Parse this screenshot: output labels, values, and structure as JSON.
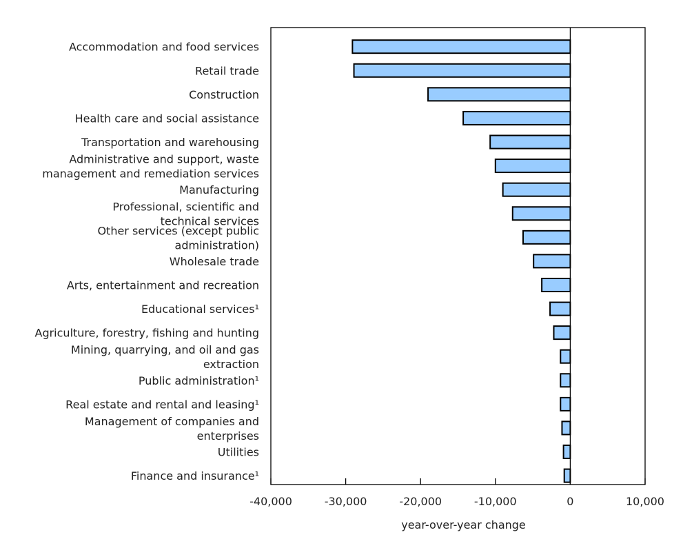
{
  "chart_data": {
    "type": "bar",
    "orientation": "horizontal",
    "categories": [
      "Accommodation and food services",
      "Retail trade",
      "Construction",
      "Health care and social assistance",
      "Transportation and warehousing",
      "Administrative and support, waste management and remediation services",
      "Manufacturing",
      "Professional, scientific and technical services",
      "Other services (except public administration)",
      "Wholesale trade",
      "Arts, entertainment and recreation",
      "Educational services¹",
      "Agriculture, forestry, fishing and hunting",
      "Mining, quarrying, and oil and gas extraction",
      "Public administration¹",
      "Real estate and rental and leasing¹",
      "Management of companies and enterprises",
      "Utilities",
      "Finance and insurance¹"
    ],
    "category_lines": [
      [
        "Accommodation and food services"
      ],
      [
        "Retail trade"
      ],
      [
        "Construction"
      ],
      [
        "Health care and social assistance"
      ],
      [
        "Transportation and warehousing"
      ],
      [
        "Administrative and support, waste",
        "management and remediation services"
      ],
      [
        "Manufacturing"
      ],
      [
        "Professional, scientific and",
        "technical services"
      ],
      [
        "Other services (except public",
        "administration)"
      ],
      [
        "Wholesale trade"
      ],
      [
        "Arts, entertainment and recreation"
      ],
      [
        "Educational services¹"
      ],
      [
        "Agriculture, forestry, fishing and hunting"
      ],
      [
        "Mining, quarrying, and oil and gas",
        "extraction"
      ],
      [
        "Public administration¹"
      ],
      [
        "Real estate and rental and leasing¹"
      ],
      [
        "Management of companies and",
        "enterprises"
      ],
      [
        "Utilities"
      ],
      [
        "Finance and insurance¹"
      ]
    ],
    "values": [
      -29100,
      -28900,
      -19000,
      -14300,
      -10700,
      -10000,
      -9000,
      -7700,
      -6300,
      -4900,
      -3800,
      -2700,
      -2200,
      -1300,
      -1300,
      -1300,
      -1100,
      -900,
      -800
    ],
    "xlabel": "year-over-year change",
    "xlim": [
      -40000,
      10000
    ],
    "xticks": [
      -40000,
      -30000,
      -20000,
      -10000,
      0,
      10000
    ],
    "xtick_labels": [
      "-40,000",
      "-30,000",
      "-20,000",
      "-10,000",
      "0",
      "10,000"
    ],
    "grid": false,
    "bar_color": "#99ccff",
    "bar_edge_color": "#000000"
  }
}
